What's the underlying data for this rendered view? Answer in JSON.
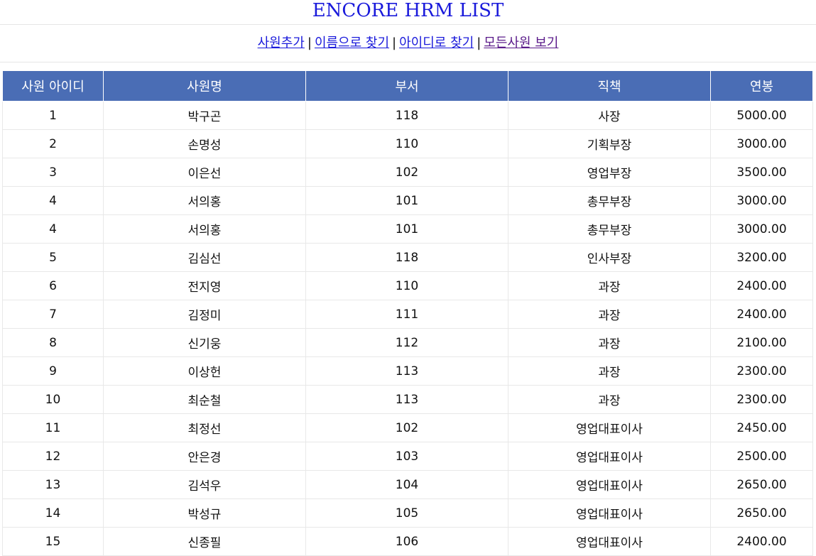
{
  "header": {
    "title": "ENCORE HRM LIST",
    "title_color": "#1a1adb"
  },
  "nav": {
    "links": [
      {
        "label": "사원추가"
      },
      {
        "label": "이름으로 찾기"
      },
      {
        "label": "아이디로 찾기"
      },
      {
        "label": "모든사원 보기"
      }
    ],
    "separator": "|"
  },
  "table": {
    "header_color": "#4a6db5",
    "columns": [
      "사원 아이디",
      "사원명",
      "부서",
      "직책",
      "연봉"
    ],
    "rows": [
      [
        "1",
        "박구곤",
        "118",
        "사장",
        "5000.00"
      ],
      [
        "2",
        "손명성",
        "110",
        "기획부장",
        "3000.00"
      ],
      [
        "3",
        "이은선",
        "102",
        "영업부장",
        "3500.00"
      ],
      [
        "4",
        "서의홍",
        "101",
        "총무부장",
        "3000.00"
      ],
      [
        "4",
        "서의홍",
        "101",
        "총무부장",
        "3000.00"
      ],
      [
        "5",
        "김심선",
        "118",
        "인사부장",
        "3200.00"
      ],
      [
        "6",
        "전지영",
        "110",
        "과장",
        "2400.00"
      ],
      [
        "7",
        "김정미",
        "111",
        "과장",
        "2400.00"
      ],
      [
        "8",
        "신기웅",
        "112",
        "과장",
        "2100.00"
      ],
      [
        "9",
        "이상헌",
        "113",
        "과장",
        "2300.00"
      ],
      [
        "10",
        "최순철",
        "113",
        "과장",
        "2300.00"
      ],
      [
        "11",
        "최정선",
        "102",
        "영업대표이사",
        "2450.00"
      ],
      [
        "12",
        "안은경",
        "103",
        "영업대표이사",
        "2500.00"
      ],
      [
        "13",
        "김석우",
        "104",
        "영업대표이사",
        "2650.00"
      ],
      [
        "14",
        "박성규",
        "105",
        "영업대표이사",
        "2650.00"
      ],
      [
        "15",
        "신종필",
        "106",
        "영업대표이사",
        "2400.00"
      ]
    ]
  }
}
